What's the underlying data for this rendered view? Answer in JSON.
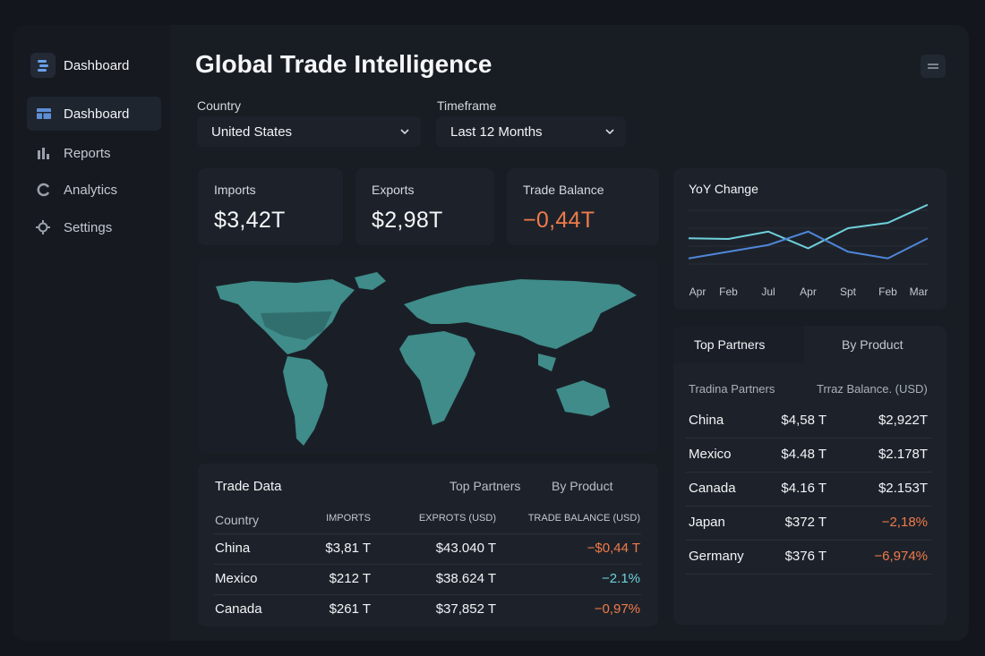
{
  "sidebar": {
    "brand": "Dashboard",
    "nav": [
      "Dashboard",
      "Reports",
      "Analytics",
      "Settings"
    ]
  },
  "header": {
    "title": "Global Trade Intelligence"
  },
  "filters": [
    {
      "label": "Country",
      "value": "United States"
    },
    {
      "label": "Timeframe",
      "value": "Last 12 Months"
    }
  ],
  "kpis": [
    {
      "label": "Imports",
      "value": "$3,42T",
      "color": "#f4f6f8"
    },
    {
      "label": "Exports",
      "value": "$2,98T",
      "color": "#f4f6f8"
    },
    {
      "label": "Trade Balance",
      "value": "−0,44T",
      "color": "#f07a4a"
    }
  ],
  "chart_data": {
    "type": "line",
    "title": "YoY Change",
    "categories": [
      "Apr",
      "Feb",
      "Jul",
      "Apr",
      "Spt",
      "Feb",
      "Mar"
    ],
    "ylim": [
      0,
      100
    ],
    "series": [
      {
        "color": "#6fd0dc",
        "values": [
          45,
          44,
          55,
          30,
          60,
          68,
          95
        ]
      },
      {
        "color": "#4f86d8",
        "values": [
          15,
          25,
          35,
          55,
          25,
          15,
          45
        ]
      }
    ]
  },
  "partners": {
    "tabs": [
      "Top Partners",
      "By Product"
    ],
    "headers": [
      "Tradina Partners",
      "Trraz Balance. (USD)"
    ],
    "rows": [
      {
        "cells": [
          "China",
          "$4,58 T",
          "$2,922T"
        ],
        "color": "#f2f4f7"
      },
      {
        "cells": [
          "Mexico",
          "$4.48 T",
          "$2.178T"
        ],
        "color": "#f2f4f7"
      },
      {
        "cells": [
          "Canada",
          "$4.16 T",
          "$2.153T"
        ],
        "color": "#f2f4f7"
      },
      {
        "cells": [
          "Japan",
          "$372 T",
          "−2,18%"
        ],
        "color": "#f07a4a"
      },
      {
        "cells": [
          "Germany",
          "$376 T",
          "−6,974%"
        ],
        "color": "#f07a4a"
      }
    ]
  },
  "trade_table": {
    "title": "Trade Data",
    "tabs": [
      "Top Partners",
      "By Product"
    ],
    "headers": [
      "Country",
      "IMPORTS",
      "EXPROTS (USD)",
      "TRADE BALANCE (USD)"
    ],
    "rows": [
      {
        "cells": [
          "China",
          "$3,81 T",
          "$43.040 T",
          "−$0,44 T"
        ],
        "color": "#f07a4a"
      },
      {
        "cells": [
          "Mexico",
          "$212 T",
          "$38.624 T",
          "−2.1%"
        ],
        "color": "#6fd0dc"
      },
      {
        "cells": [
          "Canada",
          "$261 T",
          "$37,852 T",
          "−0,97%"
        ],
        "color": "#f07a4a"
      }
    ]
  }
}
